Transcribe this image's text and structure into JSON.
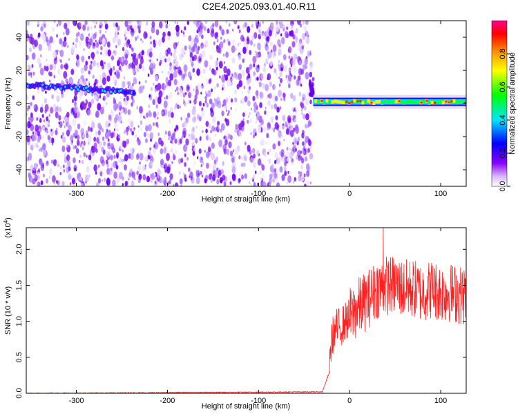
{
  "title": "C2E4.2025.093.01.40.R11",
  "chart_data": [
    {
      "type": "heatmap",
      "xlabel": "Height of straight line (km)",
      "ylabel": "Frequency (Hz)",
      "xlim": [
        -355,
        128
      ],
      "ylim": [
        -50,
        50
      ],
      "xticks": [
        -300,
        -200,
        -100,
        0,
        100
      ],
      "yticks": [
        -40,
        -20,
        0,
        20,
        40
      ],
      "colorbar": {
        "label": "Normalized spectral amplitude",
        "range": [
          0,
          1
        ],
        "ticks": [
          "0.0",
          "0.2",
          "0.4",
          "0.6",
          "0.8"
        ],
        "colors": [
          "#ffffff",
          "#8a00ff",
          "#0000ff",
          "#00e5ff",
          "#00ff00",
          "#ffff00",
          "#ff8800",
          "#ff0000",
          "#ff0090"
        ]
      },
      "features": {
        "noise_region_x": [
          -355,
          -42
        ],
        "ridge_before_x": [
          -355,
          -235
        ],
        "ridge_before_freq": 11,
        "ridge_after_x": [
          -40,
          128
        ],
        "ridge_after_freq": 1
      }
    },
    {
      "type": "line",
      "xlabel": "Height of straight line (km)",
      "ylabel": "SNR (10 * v/v)",
      "scale_label": "(x10^4)",
      "xlim": [
        -355,
        128
      ],
      "ylim": [
        0,
        2.3
      ],
      "xticks": [
        -300,
        -200,
        -100,
        0,
        100
      ],
      "yticks": [
        "0.0",
        "0.5",
        "1.0",
        "1.5",
        "2.0"
      ],
      "color": "#ff2020",
      "envelope": {
        "x": [
          -355,
          -30,
          -22,
          -20,
          -15,
          -10,
          0,
          10,
          20,
          30,
          40,
          50,
          60,
          70,
          80,
          90,
          100,
          110,
          128
        ],
        "y": [
          0.0,
          0.02,
          0.3,
          0.75,
          0.9,
          0.92,
          1.05,
          1.2,
          1.3,
          1.45,
          1.5,
          1.5,
          1.45,
          1.45,
          1.4,
          1.45,
          1.4,
          1.4,
          1.35
        ]
      },
      "peak": {
        "x": 37,
        "y": 2.3
      }
    }
  ]
}
